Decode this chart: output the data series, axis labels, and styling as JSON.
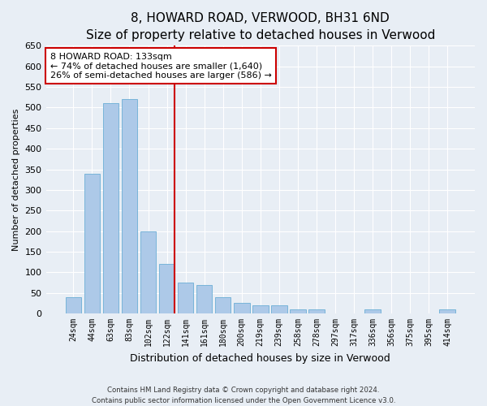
{
  "title": "8, HOWARD ROAD, VERWOOD, BH31 6ND",
  "subtitle": "Size of property relative to detached houses in Verwood",
  "xlabel": "Distribution of detached houses by size in Verwood",
  "ylabel": "Number of detached properties",
  "categories": [
    "24sqm",
    "44sqm",
    "63sqm",
    "83sqm",
    "102sqm",
    "122sqm",
    "141sqm",
    "161sqm",
    "180sqm",
    "200sqm",
    "219sqm",
    "239sqm",
    "258sqm",
    "278sqm",
    "297sqm",
    "317sqm",
    "336sqm",
    "356sqm",
    "375sqm",
    "395sqm",
    "414sqm"
  ],
  "values": [
    40,
    340,
    510,
    520,
    200,
    120,
    75,
    70,
    40,
    25,
    20,
    20,
    10,
    10,
    0,
    0,
    10,
    0,
    0,
    0,
    10
  ],
  "bar_color": "#adc9e8",
  "bar_edge_color": "#6baed6",
  "reference_line_color": "#cc0000",
  "reference_line_x": 5.42,
  "annotation_text": "8 HOWARD ROAD: 133sqm\n← 74% of detached houses are smaller (1,640)\n26% of semi-detached houses are larger (586) →",
  "annotation_box_color": "#ffffff",
  "annotation_box_edge_color": "#cc0000",
  "ylim": [
    0,
    650
  ],
  "yticks": [
    0,
    50,
    100,
    150,
    200,
    250,
    300,
    350,
    400,
    450,
    500,
    550,
    600,
    650
  ],
  "footer_line1": "Contains HM Land Registry data © Crown copyright and database right 2024.",
  "footer_line2": "Contains public sector information licensed under the Open Government Licence v3.0.",
  "background_color": "#e8eef5",
  "plot_bg_color": "#e8eef5",
  "title_fontsize": 11,
  "subtitle_fontsize": 10,
  "ylabel_fontsize": 8,
  "xlabel_fontsize": 9,
  "tick_fontsize": 8,
  "annotation_fontsize": 8
}
